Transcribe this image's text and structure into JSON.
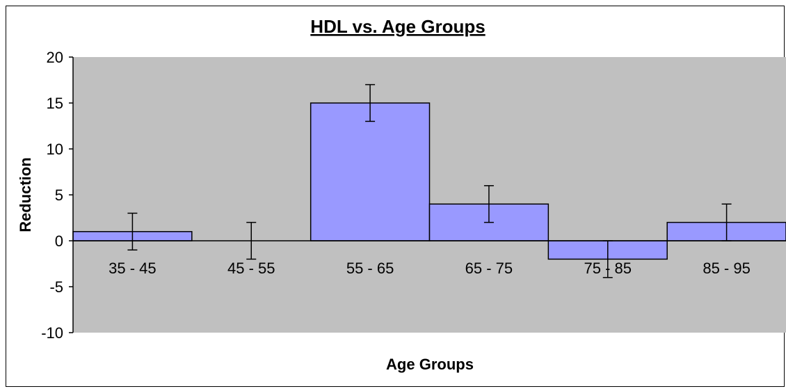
{
  "chart_data": {
    "type": "bar",
    "title": "HDL vs. Age Groups",
    "xlabel": "Age Groups",
    "ylabel": "Reduction",
    "categories": [
      "35 - 45",
      "45 - 55",
      "55 - 65",
      "65 - 75",
      "75 - 85",
      "85 - 95"
    ],
    "values": [
      1,
      0,
      15,
      4,
      -2,
      2
    ],
    "error": [
      2,
      2,
      2,
      2,
      2,
      2
    ],
    "ylim": [
      -10,
      20
    ],
    "yticks": [
      -10,
      -5,
      0,
      5,
      10,
      15,
      20
    ],
    "grid": false,
    "legend": "none",
    "colors": {
      "plot_background": "#c0c0c0",
      "bar_fill": "#9999ff",
      "bar_stroke": "#000000"
    }
  }
}
